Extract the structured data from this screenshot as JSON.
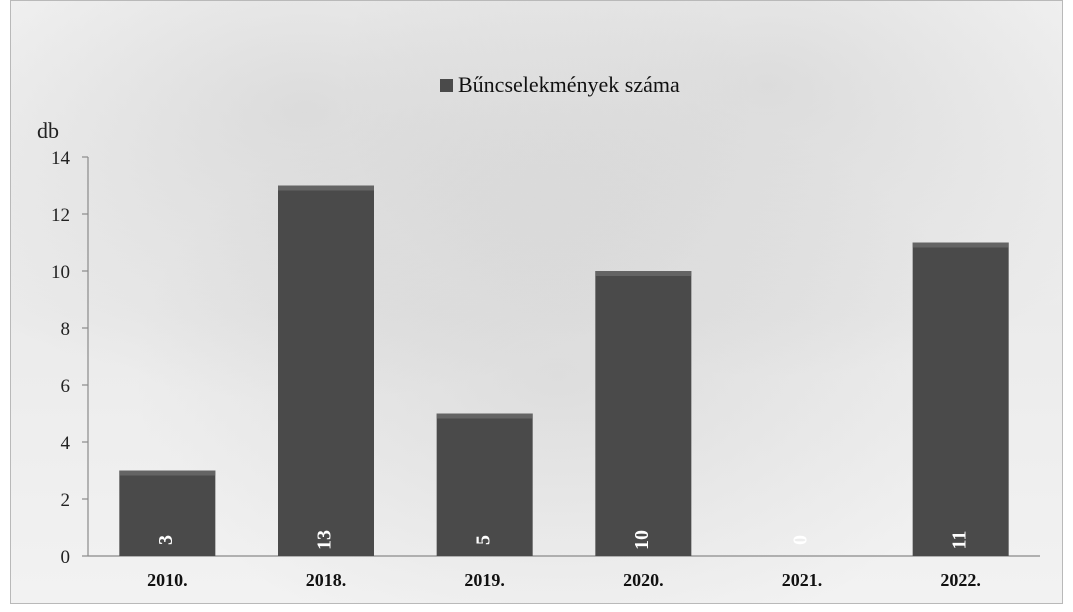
{
  "chart_data": {
    "type": "bar",
    "categories": [
      "2010.",
      "2018.",
      "2019.",
      "2020.",
      "2021.",
      "2022."
    ],
    "series": [
      {
        "name": "Bűncselekmények száma",
        "values": [
          3,
          13,
          5,
          10,
          0,
          11
        ]
      }
    ],
    "ylabel": "db",
    "ylim": [
      0,
      14
    ],
    "yticks": [
      0,
      2,
      4,
      6,
      8,
      10,
      12,
      14
    ],
    "grid": false,
    "legend": "top-center",
    "data_labels": [
      "3",
      "13",
      "5",
      "10",
      "0",
      "11"
    ],
    "colors": {
      "bar": "#4a4a4a",
      "bar_highlight": "#6a6a6a",
      "axis": "#8a8a8a",
      "legend_swatch": "#4a4a4a",
      "data_label": "#ffffff"
    }
  }
}
